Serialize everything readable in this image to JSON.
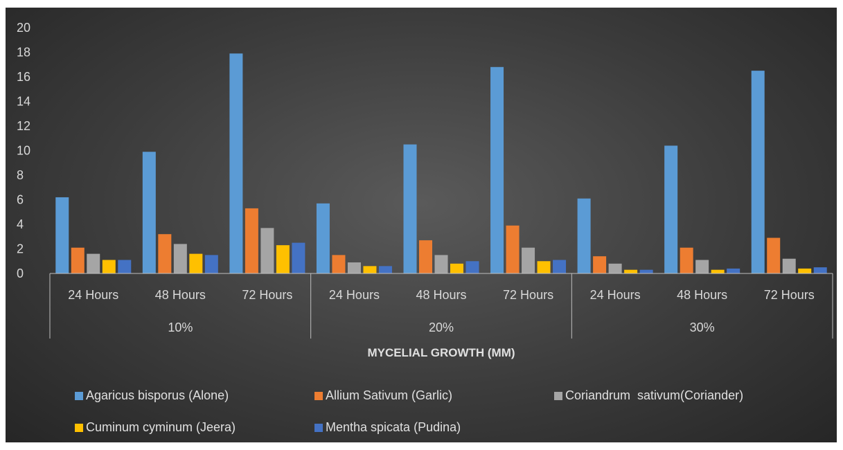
{
  "chart_data": {
    "type": "bar",
    "title": "",
    "xlabel": "MYCELIAL GROWTH (MM)",
    "ylabel": "",
    "ylim": [
      0,
      20
    ],
    "yticks": [
      "0",
      "2",
      "4",
      "6",
      "8",
      "10",
      "12",
      "14",
      "16",
      "18",
      "20"
    ],
    "groups": [
      {
        "label": "10%",
        "categories": [
          "24 Hours",
          "48 Hours",
          "72 Hours"
        ]
      },
      {
        "label": "20%",
        "categories": [
          "24 Hours",
          "48 Hours",
          "72 Hours"
        ]
      },
      {
        "label": "30%",
        "categories": [
          "24 Hours",
          "48 Hours",
          "72 Hours"
        ]
      }
    ],
    "series": [
      {
        "name": "Agaricus bisporus (Alone)",
        "color": "#5b9bd5",
        "values": [
          6.2,
          9.9,
          17.9,
          5.7,
          10.5,
          16.8,
          6.1,
          10.4,
          16.5
        ]
      },
      {
        "name": "Allium Sativum (Garlic)",
        "color": "#ed7d31",
        "values": [
          2.1,
          3.2,
          5.3,
          1.5,
          2.7,
          3.9,
          1.4,
          2.1,
          2.9
        ]
      },
      {
        "name": "Coriandrum  sativum(Coriander)",
        "color": "#a5a5a5",
        "values": [
          1.6,
          2.4,
          3.7,
          0.9,
          1.5,
          2.1,
          0.8,
          1.1,
          1.2
        ]
      },
      {
        "name": "Cuminum cyminum (Jeera)",
        "color": "#ffc000",
        "values": [
          1.1,
          1.6,
          2.3,
          0.6,
          0.8,
          1.0,
          0.3,
          0.3,
          0.4
        ]
      },
      {
        "name": "Mentha spicata (Pudina)",
        "color": "#4472c4",
        "values": [
          1.1,
          1.5,
          2.5,
          0.6,
          1.0,
          1.1,
          0.3,
          0.4,
          0.5
        ]
      }
    ],
    "legend_position": "bottom",
    "grid": false
  }
}
